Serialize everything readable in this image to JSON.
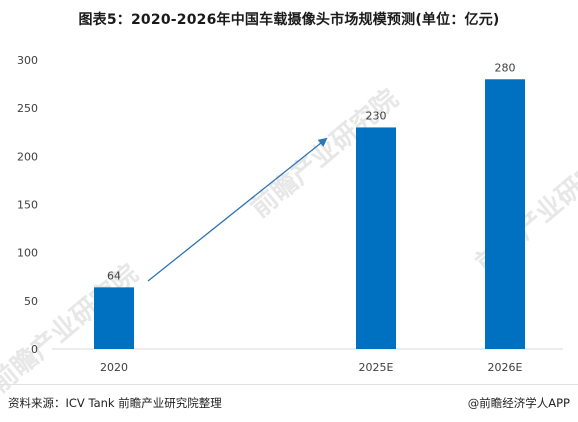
{
  "chart_data": {
    "type": "bar",
    "title": "图表5：2020-2026年中国车载摄像头市场规模预测(单位：亿元)",
    "categories": [
      "2020",
      "2025E",
      "2026E"
    ],
    "values": [
      64,
      230,
      280
    ],
    "data_labels": [
      "64",
      "230",
      "280"
    ],
    "ylim": [
      0,
      300
    ],
    "yticks": [
      "0",
      "50",
      "100",
      "150",
      "200",
      "250",
      "300"
    ],
    "xlabel": "",
    "ylabel": "",
    "grid": false,
    "legend": "none",
    "bar_color": "#0070c0",
    "arrow_color": "#2e75b6"
  },
  "footer": {
    "source": "资料来源：ICV Tank 前瞻产业研究院整理",
    "brand": "@前瞻经济学人APP"
  },
  "watermark": {
    "text": "前瞻产业研究院",
    "color": "#dddddd"
  }
}
